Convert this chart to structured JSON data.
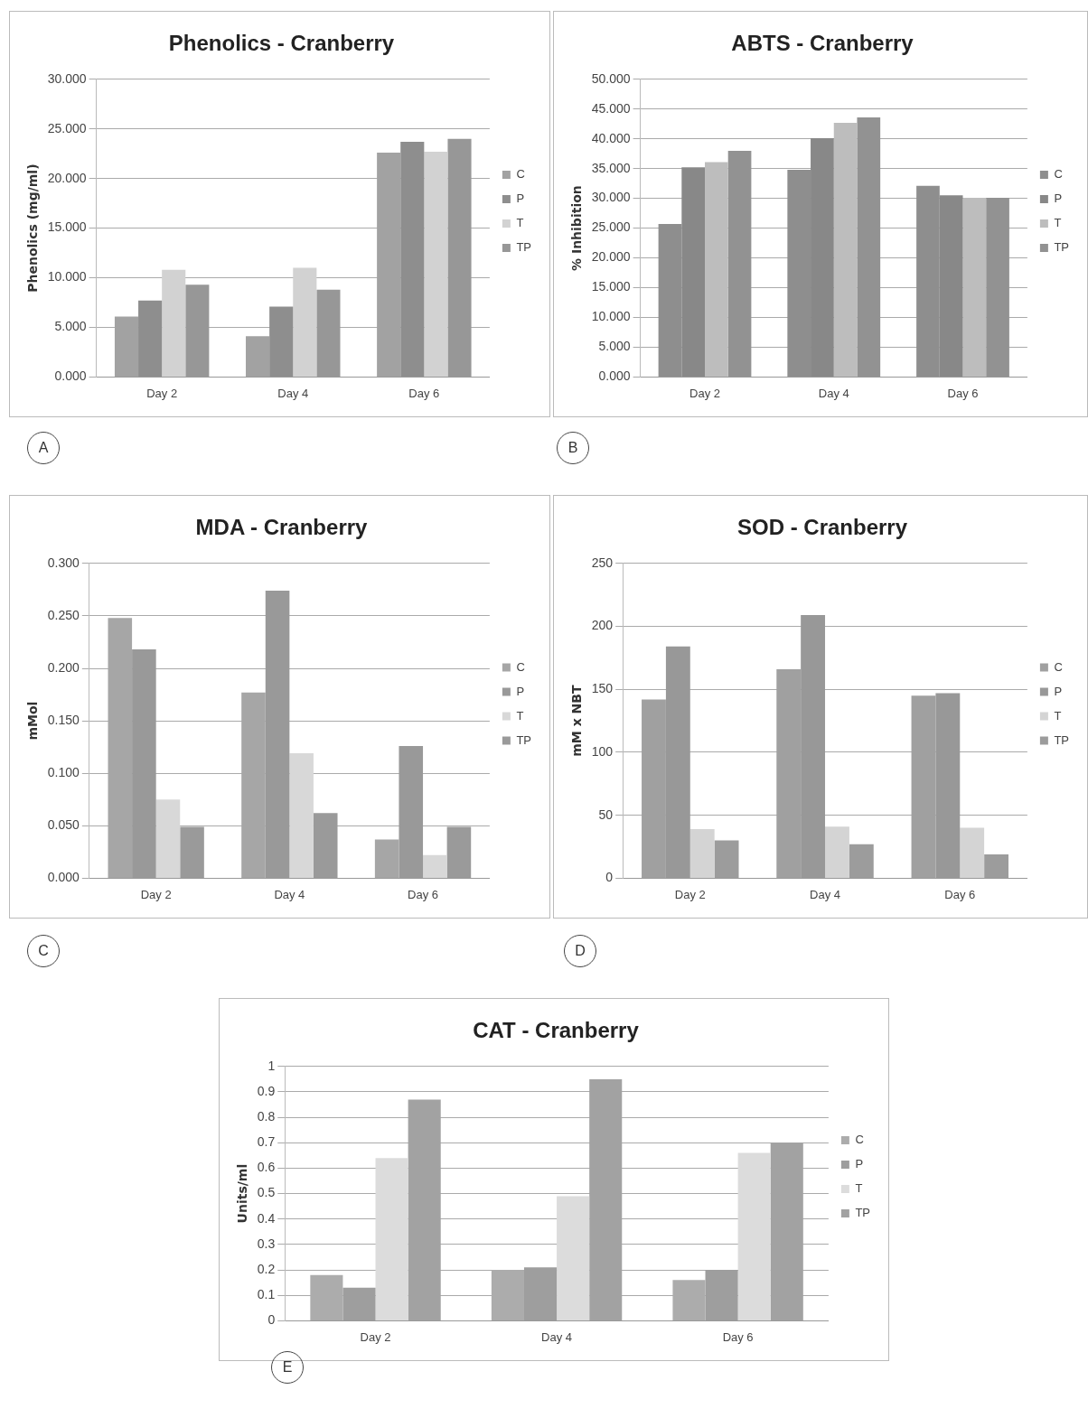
{
  "chart_data": [
    {
      "type": "bar",
      "title": "Phenolics - Cranberry",
      "ylabel": "Phenolics (mg/ml)",
      "categories": [
        "Day 2",
        "Day 4",
        "Day 6"
      ],
      "series": [
        {
          "name": "C",
          "color": "#a2a2a2",
          "values": [
            6.1,
            4.1,
            22.6
          ]
        },
        {
          "name": "P",
          "color": "#8e8e8e",
          "values": [
            7.7,
            7.1,
            23.7
          ]
        },
        {
          "name": "T",
          "color": "#d2d2d2",
          "values": [
            10.8,
            11.0,
            22.7
          ]
        },
        {
          "name": "TP",
          "color": "#979797",
          "values": [
            9.3,
            8.8,
            24.0
          ]
        }
      ],
      "ylim": [
        0,
        30
      ],
      "yticks": [
        {
          "value": 0,
          "label": "0.000"
        },
        {
          "value": 5,
          "label": "5.000"
        },
        {
          "value": 10,
          "label": "10.000"
        },
        {
          "value": 15,
          "label": "15.000"
        },
        {
          "value": 20,
          "label": "20.000"
        },
        {
          "value": 25,
          "label": "25.000"
        },
        {
          "value": 30,
          "label": "30.000"
        }
      ],
      "grid": "y",
      "legend": "right",
      "annotations": [
        "A"
      ]
    },
    {
      "type": "bar",
      "title": "ABTS - Cranberry",
      "ylabel": "% Inhibition",
      "categories": [
        "Day 2",
        "Day 4",
        "Day 6"
      ],
      "series": [
        {
          "name": "C",
          "color": "#8e8e8e",
          "values": [
            25.7,
            34.8,
            32.1
          ]
        },
        {
          "name": "P",
          "color": "#888888",
          "values": [
            35.2,
            40.1,
            30.5
          ]
        },
        {
          "name": "T",
          "color": "#bdbdbd",
          "values": [
            36.1,
            42.7,
            30.1
          ]
        },
        {
          "name": "TP",
          "color": "#929292",
          "values": [
            38.0,
            43.6,
            30.1
          ]
        }
      ],
      "ylim": [
        0,
        50
      ],
      "yticks": [
        {
          "value": 0,
          "label": "0.000"
        },
        {
          "value": 5,
          "label": "5.000"
        },
        {
          "value": 10,
          "label": "10.000"
        },
        {
          "value": 15,
          "label": "15.000"
        },
        {
          "value": 20,
          "label": "20.000"
        },
        {
          "value": 25,
          "label": "25.000"
        },
        {
          "value": 30,
          "label": "30.000"
        },
        {
          "value": 35,
          "label": "35.000"
        },
        {
          "value": 40,
          "label": "40.000"
        },
        {
          "value": 45,
          "label": "45.000"
        },
        {
          "value": 50,
          "label": "50.000"
        }
      ],
      "grid": "y",
      "legend": "right",
      "annotations": [
        "B"
      ]
    },
    {
      "type": "bar",
      "title": "MDA - Cranberry",
      "ylabel": "mMol",
      "categories": [
        "Day 2",
        "Day 4",
        "Day 6"
      ],
      "series": [
        {
          "name": "C",
          "color": "#a6a6a6",
          "values": [
            0.248,
            0.177,
            0.037
          ]
        },
        {
          "name": "P",
          "color": "#999999",
          "values": [
            0.218,
            0.274,
            0.126
          ]
        },
        {
          "name": "T",
          "color": "#d8d8d8",
          "values": [
            0.075,
            0.119,
            0.022
          ]
        },
        {
          "name": "TP",
          "color": "#9a9a9a",
          "values": [
            0.049,
            0.062,
            0.049
          ]
        }
      ],
      "ylim": [
        0,
        0.3
      ],
      "yticks": [
        {
          "value": 0,
          "label": "0.000"
        },
        {
          "value": 0.05,
          "label": "0.050"
        },
        {
          "value": 0.1,
          "label": "0.100"
        },
        {
          "value": 0.15,
          "label": "0.150"
        },
        {
          "value": 0.2,
          "label": "0.200"
        },
        {
          "value": 0.25,
          "label": "0.250"
        },
        {
          "value": 0.3,
          "label": "0.300"
        }
      ],
      "grid": "y",
      "legend": "right",
      "annotations": [
        "C"
      ]
    },
    {
      "type": "bar",
      "title": "SOD - Cranberry",
      "ylabel": "mM x NBT",
      "categories": [
        "Day 2",
        "Day 4",
        "Day 6"
      ],
      "series": [
        {
          "name": "C",
          "color": "#a0a0a0",
          "values": [
            142,
            166,
            145
          ]
        },
        {
          "name": "P",
          "color": "#989898",
          "values": [
            184,
            209,
            147
          ]
        },
        {
          "name": "T",
          "color": "#d4d4d4",
          "values": [
            39,
            41,
            40
          ]
        },
        {
          "name": "TP",
          "color": "#9c9c9c",
          "values": [
            30,
            27,
            19
          ]
        }
      ],
      "ylim": [
        0,
        250
      ],
      "yticks": [
        0,
        50,
        100,
        150,
        200,
        250
      ],
      "grid": "y",
      "legend": "right",
      "annotations": [
        "D"
      ]
    },
    {
      "type": "bar",
      "title": "CAT - Cranberry",
      "ylabel": "Units/ml",
      "categories": [
        "Day 2",
        "Day 4",
        "Day 6"
      ],
      "series": [
        {
          "name": "C",
          "color": "#acacac",
          "values": [
            0.18,
            0.2,
            0.16
          ]
        },
        {
          "name": "P",
          "color": "#9e9e9e",
          "values": [
            0.13,
            0.21,
            0.2
          ]
        },
        {
          "name": "T",
          "color": "#dcdcdc",
          "values": [
            0.64,
            0.49,
            0.66
          ]
        },
        {
          "name": "TP",
          "color": "#a2a2a2",
          "values": [
            0.87,
            0.95,
            0.7
          ]
        }
      ],
      "ylim": [
        0,
        1
      ],
      "yticks": [
        0,
        0.1,
        0.2,
        0.3,
        0.4,
        0.5,
        0.6,
        0.7,
        0.8,
        0.9,
        1
      ],
      "grid": "y",
      "legend": "right",
      "annotations": [
        "E"
      ]
    }
  ]
}
